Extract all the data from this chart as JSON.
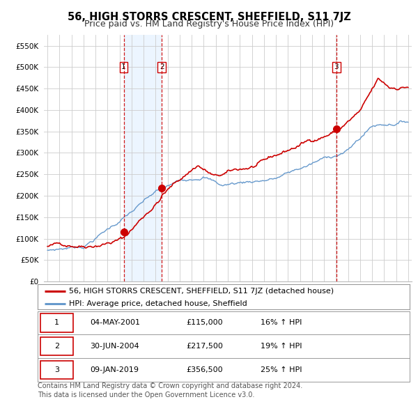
{
  "title": "56, HIGH STORRS CRESCENT, SHEFFIELD, S11 7JZ",
  "subtitle": "Price paid vs. HM Land Registry's House Price Index (HPI)",
  "ylim": [
    0,
    575000
  ],
  "yticks": [
    0,
    50000,
    100000,
    150000,
    200000,
    250000,
    300000,
    350000,
    400000,
    450000,
    500000,
    550000
  ],
  "ytick_labels": [
    "£0",
    "£50K",
    "£100K",
    "£150K",
    "£200K",
    "£250K",
    "£300K",
    "£350K",
    "£400K",
    "£450K",
    "£500K",
    "£550K"
  ],
  "sale1_date": 2001.34,
  "sale1_price": 115000,
  "sale1_label": "1",
  "sale2_date": 2004.5,
  "sale2_price": 217500,
  "sale2_label": "2",
  "sale3_date": 2019.03,
  "sale3_price": 356500,
  "sale3_label": "3",
  "hpi_line_color": "#6699cc",
  "price_line_color": "#cc0000",
  "sale_marker_color": "#cc0000",
  "vline_color": "#cc0000",
  "shade_color": "#ddeeff",
  "grid_color": "#cccccc",
  "background_color": "#ffffff",
  "legend_label_price": "56, HIGH STORRS CRESCENT, SHEFFIELD, S11 7JZ (detached house)",
  "legend_label_hpi": "HPI: Average price, detached house, Sheffield",
  "table_rows": [
    {
      "num": "1",
      "date": "04-MAY-2001",
      "price": "£115,000",
      "hpi": "16% ↑ HPI"
    },
    {
      "num": "2",
      "date": "30-JUN-2004",
      "price": "£217,500",
      "hpi": "19% ↑ HPI"
    },
    {
      "num": "3",
      "date": "09-JAN-2019",
      "price": "£356,500",
      "hpi": "25% ↑ HPI"
    }
  ],
  "footer": "Contains HM Land Registry data © Crown copyright and database right 2024.\nThis data is licensed under the Open Government Licence v3.0.",
  "title_fontsize": 10.5,
  "subtitle_fontsize": 9,
  "tick_fontsize": 7.5,
  "legend_fontsize": 8,
  "table_fontsize": 8,
  "footer_fontsize": 7
}
